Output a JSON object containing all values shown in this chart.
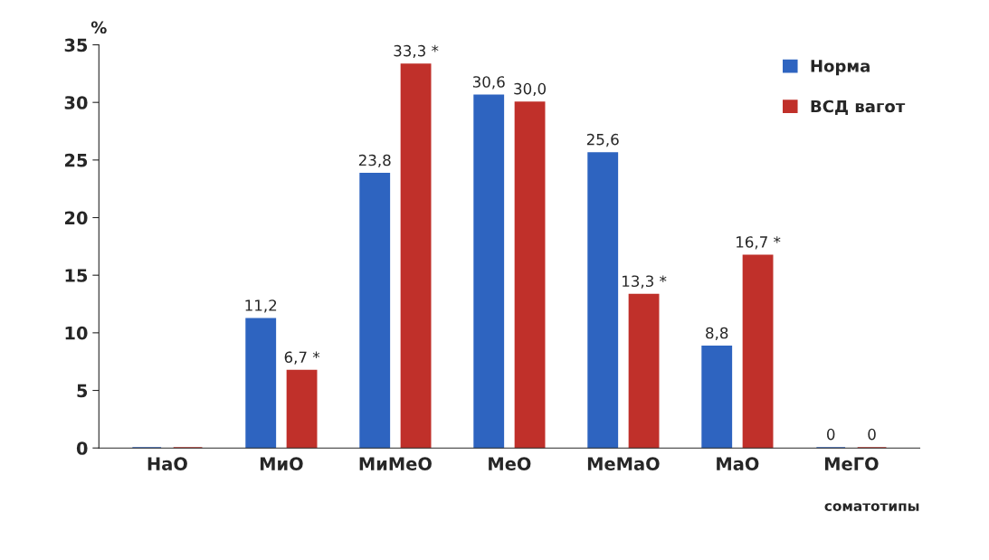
{
  "chart_data": {
    "type": "bar",
    "xlabel": "соматотипы",
    "ylabel": "%",
    "categories": [
      "НаО",
      "МиО",
      "МиМеО",
      "МеО",
      "МеМаО",
      "МаО",
      "МеГО"
    ],
    "series": [
      {
        "name": "Норма",
        "color": "#2e64c0",
        "values": [
          0,
          11.2,
          23.8,
          30.6,
          25.6,
          8.8,
          0
        ],
        "value_labels": [
          null,
          "11,2",
          "23,8",
          "30,6",
          "25,6",
          "8,8",
          "0"
        ]
      },
      {
        "name": "ВСД вагот",
        "color": "#c0302a",
        "values": [
          0,
          6.7,
          33.3,
          30.0,
          13.3,
          16.7,
          0
        ],
        "value_labels": [
          null,
          "6,7 *",
          "33,3 *",
          "30,0",
          "13,3 *",
          "16,7 *",
          "0"
        ]
      }
    ],
    "ylim": [
      0,
      35
    ],
    "yticks": [
      0,
      5,
      10,
      15,
      20,
      25,
      30,
      35
    ],
    "legend": "top right",
    "grid": false
  }
}
